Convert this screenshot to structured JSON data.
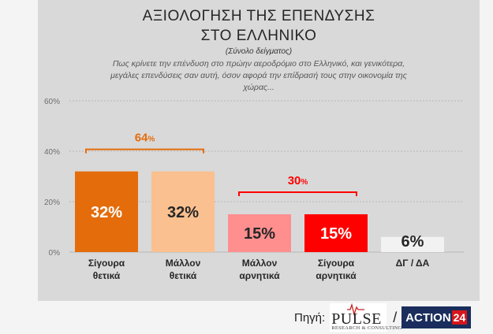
{
  "title_line1": "ΑΞΙΟΛΟΓΗΣΗ ΤΗΣ ΕΠΕΝΔΥΣΗΣ",
  "title_line2": "ΣΤΟ ΕΛΛΗΝΙΚΟ",
  "subtitle": "(Σύνολο δείγματος)",
  "question_line1": "Πως κρίνετε την επένδυση στο πρώην αεροδρόμιο στο Ελληνικό, και γενικότερα,",
  "question_line2": "μεγάλες επενδύσεις σαν αυτή, όσον αφορά την επίδρασή τους στην οικονομία της",
  "question_line3": "χώρας...",
  "source": {
    "label": "Πηγή:",
    "pulse_name": "PULSE",
    "pulse_tagline": "RESEARCH & CONSULTING",
    "separator": "/",
    "action_name": "ACTION",
    "action_number": "24"
  },
  "chart_data": {
    "type": "bar",
    "categories": [
      [
        "Σίγουρα",
        "θετικά"
      ],
      [
        "Μάλλον",
        "θετικά"
      ],
      [
        "Μάλλον",
        "αρνητικά"
      ],
      [
        "Σίγουρα",
        "αρνητικά"
      ],
      [
        "ΔΓ / ΔΑ"
      ]
    ],
    "values": [
      32,
      32,
      15,
      15,
      6
    ],
    "value_labels": [
      "32%",
      "32%",
      "15%",
      "15%",
      "6%"
    ],
    "colors": [
      "#e46c0a",
      "#fac090",
      "#ff8f8f",
      "#ff0000",
      "#f2f2f2"
    ],
    "label_colors": [
      "#ffffff",
      "#262626",
      "#262626",
      "#ffffff",
      "#262626"
    ],
    "yticks": [
      "0%",
      "20%",
      "40%",
      "60%"
    ],
    "ytick_values": [
      0,
      20,
      40,
      60
    ],
    "ylim": [
      0,
      60
    ],
    "grid": true,
    "groups": [
      {
        "label_value": "64",
        "label_unit": "%",
        "bars": [
          0,
          1
        ],
        "color": "#e46c0a"
      },
      {
        "label_value": "30",
        "label_unit": "%",
        "bars": [
          2,
          3
        ],
        "color": "#ff0000"
      }
    ]
  }
}
